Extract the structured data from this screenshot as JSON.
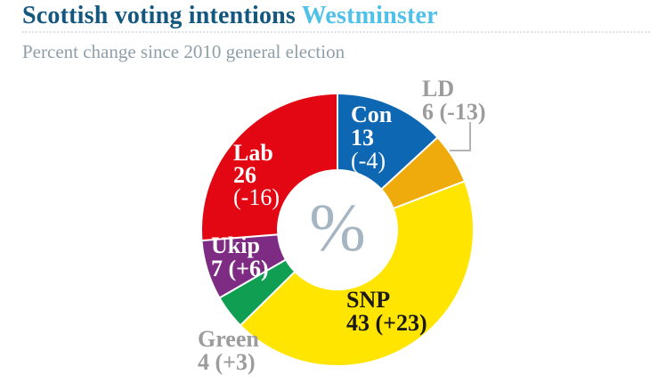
{
  "header": {
    "title": "Scottish voting intentions",
    "title_highlight": "Westminster",
    "subtitle": "Percent change since 2010 general election",
    "title_color": "#14577f",
    "highlight_color": "#4fc1e8",
    "subtitle_color": "#8f9ea8"
  },
  "chart_data": {
    "type": "pie",
    "variant": "donut",
    "title": "Scottish voting intentions Westminster",
    "subtitle": "Percent change since 2010 general election",
    "center_label": "%",
    "center_label_color": "#a5b6c2",
    "start_angle_deg": 0,
    "direction": "clockwise",
    "legend_position": "labels-on-segments",
    "series": [
      {
        "party": "Con",
        "value": 13,
        "change": "(-4)",
        "color": "#0e67b2",
        "label_placement": "inside",
        "label_color": "#ffffff"
      },
      {
        "party": "LD",
        "value": 6,
        "change": "(-13)",
        "color": "#eeab0b",
        "label_placement": "outside",
        "label_color": "#9c9c9c"
      },
      {
        "party": "SNP",
        "value": 43,
        "change": "(+23)",
        "color": "#ffe500",
        "label_placement": "inside",
        "label_color": "#191919"
      },
      {
        "party": "Green",
        "value": 4,
        "change": "(+3)",
        "color": "#109e53",
        "label_placement": "outside",
        "label_color": "#9c9c9c"
      },
      {
        "party": "Ukip",
        "value": 7,
        "change": "(+6)",
        "color": "#7d2b83",
        "label_placement": "inside",
        "label_color": "#ffffff"
      },
      {
        "party": "Lab",
        "value": 26,
        "change": "(-16)",
        "color": "#e30613",
        "label_placement": "inside",
        "label_color": "#ffffff"
      }
    ]
  }
}
